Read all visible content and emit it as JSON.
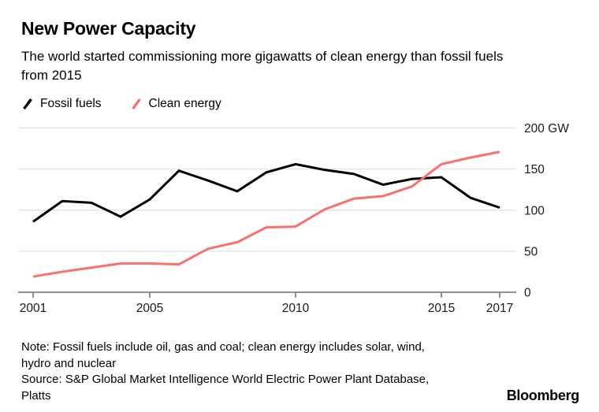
{
  "header": {
    "title": "New Power Capacity",
    "subtitle_lines": [
      "The world started commissioning more gigawatts of clean energy than fossil fuels",
      "from 2015"
    ]
  },
  "legend": [
    {
      "label": "Fossil fuels",
      "color": "#000000"
    },
    {
      "label": "Clean energy",
      "color": "#f8716d"
    }
  ],
  "chart_data": {
    "type": "line",
    "title": "New Power Capacity",
    "unit": "GW",
    "x": [
      2001,
      2002,
      2003,
      2004,
      2005,
      2006,
      2007,
      2008,
      2009,
      2010,
      2011,
      2012,
      2013,
      2014,
      2015,
      2016,
      2017
    ],
    "series": [
      {
        "name": "Fossil fuels",
        "color": "#000000",
        "values": [
          86,
          111,
          109,
          92,
          113,
          148,
          136,
          123,
          146,
          156,
          149,
          144,
          131,
          138,
          140,
          115,
          103
        ]
      },
      {
        "name": "Clean energy",
        "color": "#f8716d",
        "values": [
          19,
          25,
          30,
          35,
          35,
          34,
          53,
          61,
          79,
          80,
          101,
          114,
          117,
          129,
          156,
          164,
          171
        ]
      }
    ],
    "x_ticks": [
      2001,
      2005,
      2010,
      2015,
      2017
    ],
    "y_ticks": [
      0,
      50,
      100,
      150,
      200
    ],
    "y_tick_labels": [
      "0",
      "50",
      "100",
      "150",
      "200 GW"
    ],
    "ylim": [
      0,
      200
    ],
    "grid": "horizontal",
    "legend_position": "top-left",
    "grid_color": "#e6e6e6",
    "axis_color": "#6e6e6e",
    "tick_label_color": "#1a1a1a"
  },
  "footer": {
    "note_lines": [
      "Note: Fossil fuels include oil, gas and coal; clean energy includes solar, wind,",
      "hydro and nuclear"
    ],
    "source_lines": [
      "Source: S&P Global Market Intelligence World Electric Power Plant Database,",
      "Platts"
    ],
    "brand": "Bloomberg"
  }
}
